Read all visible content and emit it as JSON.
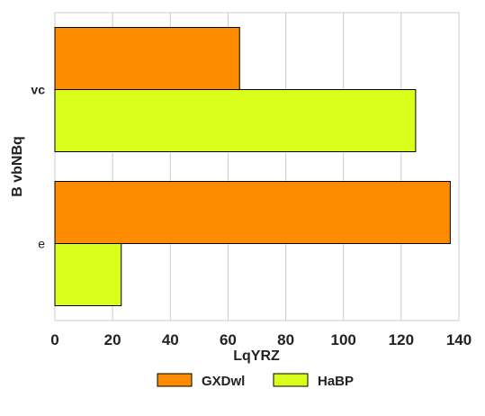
{
  "chart_data": {
    "type": "bar",
    "orientation": "horizontal",
    "categories": [
      "vc",
      "e"
    ],
    "series": [
      {
        "name": "GXDwl",
        "color": "#ff8c00",
        "values": [
          64,
          137
        ]
      },
      {
        "name": "HaBP",
        "color": "#d9ff1a",
        "values": [
          125,
          23
        ]
      }
    ],
    "xlabel": "LqYRZ",
    "ylabel": "B vbNBq",
    "xlim": [
      0,
      140
    ],
    "xticks": [
      0,
      20,
      40,
      60,
      80,
      100,
      120,
      140
    ],
    "grid": true,
    "legend_position": "bottom"
  }
}
